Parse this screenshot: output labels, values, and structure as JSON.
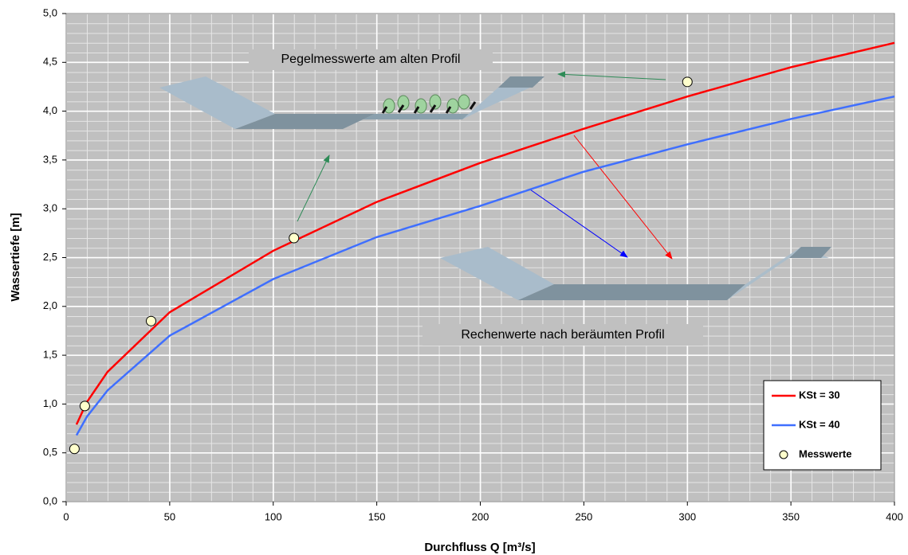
{
  "chart_data": {
    "type": "line",
    "xlabel": "Durchfluss Q [m³/s]",
    "ylabel": "Wassertiefe [m]",
    "xlim": [
      0,
      400
    ],
    "xticks": [
      0,
      50,
      100,
      150,
      200,
      250,
      300,
      350,
      400
    ],
    "ylim": [
      0,
      5
    ],
    "yticks": [
      {
        "value": 0,
        "label": "0,0"
      },
      {
        "value": 0.5,
        "label": "0,5"
      },
      {
        "value": 1,
        "label": "1,0"
      },
      {
        "value": 1.5,
        "label": "1,5"
      },
      {
        "value": 2,
        "label": "2,0"
      },
      {
        "value": 2.5,
        "label": "2,5"
      },
      {
        "value": 3,
        "label": "3,0"
      },
      {
        "value": 3.5,
        "label": "3,5"
      },
      {
        "value": 4,
        "label": "4,0"
      },
      {
        "value": 4.5,
        "label": "4,5"
      },
      {
        "value": 5,
        "label": "5,0"
      }
    ],
    "grid": true,
    "legend": "lower right",
    "series": [
      {
        "name": "KSt = 30",
        "color": "#ff0000",
        "kind": "line",
        "x": [
          5,
          10,
          20,
          50,
          100,
          150,
          200,
          250,
          300,
          350,
          400
        ],
        "values": [
          0.79,
          1.02,
          1.33,
          1.94,
          2.57,
          3.07,
          3.47,
          3.82,
          4.15,
          4.45,
          4.7
        ]
      },
      {
        "name": "KSt = 40",
        "color": "#3f6fff",
        "kind": "line",
        "x": [
          5,
          10,
          20,
          50,
          100,
          150,
          200,
          250,
          300,
          350,
          400
        ],
        "values": [
          0.68,
          0.87,
          1.14,
          1.7,
          2.28,
          2.71,
          3.03,
          3.38,
          3.66,
          3.92,
          4.15
        ]
      },
      {
        "name": "Messwerte",
        "color": "#ffffcc",
        "kind": "scatter",
        "x": [
          4,
          9,
          41,
          110,
          300
        ],
        "values": [
          0.54,
          0.98,
          1.85,
          2.7,
          4.3
        ]
      }
    ],
    "annotations": [
      "Pegelmesswerte am alten Profil",
      "Rechenwerte nach beräumten Profil"
    ]
  }
}
